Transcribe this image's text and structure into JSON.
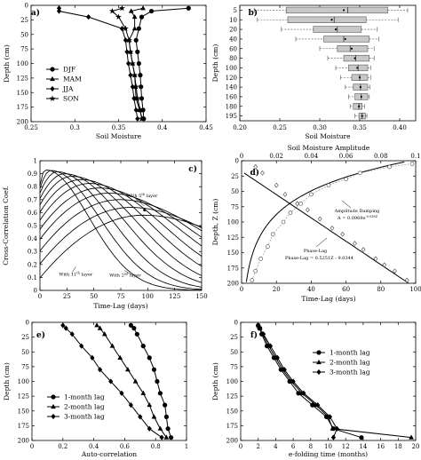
{
  "chart_data": [
    {
      "id": "a",
      "type": "line",
      "panel_label": "a)",
      "xlabel": "Soil Moisture",
      "ylabel": "Depth (cm)",
      "xlim": [
        0.2,
        0.45
      ],
      "ylim": [
        0,
        200
      ],
      "y_inverted": true,
      "xticks": [
        "0.25",
        "0.3",
        "0.35",
        "0.4",
        "0.45"
      ],
      "yticks": [
        "0",
        "25",
        "50",
        "75",
        "100",
        "125",
        "150",
        "175",
        "200"
      ],
      "legend": "bottom-left",
      "depths": [
        5,
        10,
        20,
        40,
        60,
        80,
        100,
        120,
        140,
        160,
        180,
        195
      ],
      "series": [
        {
          "name": "DJF",
          "marker": "circle",
          "values": [
            0.425,
            0.372,
            0.358,
            0.354,
            0.35,
            0.352,
            0.354,
            0.356,
            0.357,
            0.358,
            0.36,
            0.361
          ]
        },
        {
          "name": "MAM",
          "marker": "triangle",
          "values": [
            0.36,
            0.343,
            0.348,
            0.348,
            0.34,
            0.342,
            0.345,
            0.348,
            0.349,
            0.35,
            0.355,
            0.359
          ]
        },
        {
          "name": "JJA",
          "marker": "diamond",
          "values": [
            0.24,
            0.24,
            0.282,
            0.33,
            0.335,
            0.337,
            0.339,
            0.342,
            0.345,
            0.347,
            0.35,
            0.352
          ]
        },
        {
          "name": "SON",
          "marker": "star",
          "values": [
            0.33,
            0.316,
            0.325,
            0.335,
            0.34,
            0.342,
            0.345,
            0.348,
            0.35,
            0.352,
            0.356,
            0.358
          ]
        }
      ]
    },
    {
      "id": "b",
      "type": "box",
      "panel_label": "b)",
      "xlabel": "Soil Moisture",
      "ylabel": "Depth (cm)",
      "xlim": [
        0.2,
        0.42
      ],
      "xticks": [
        "0.20",
        "0.25",
        "0.30",
        "0.35",
        "0.40"
      ],
      "categories": [
        "5",
        "10",
        "20",
        "40",
        "60",
        "80",
        "100",
        "120",
        "140",
        "160",
        "180",
        "195"
      ],
      "boxes": [
        {
          "whisker_low": 0.218,
          "q1": 0.258,
          "median": 0.335,
          "q3": 0.385,
          "whisker_high": 0.41,
          "mean": 0.33
        },
        {
          "whisker_low": 0.222,
          "q1": 0.26,
          "median": 0.318,
          "q3": 0.358,
          "whisker_high": 0.398,
          "mean": 0.315
        },
        {
          "whisker_low": 0.252,
          "q1": 0.292,
          "median": 0.322,
          "q3": 0.352,
          "whisker_high": 0.372,
          "mean": 0.32
        },
        {
          "whisker_low": 0.27,
          "q1": 0.305,
          "median": 0.33,
          "q3": 0.362,
          "whisker_high": 0.374,
          "mean": 0.332
        },
        {
          "whisker_low": 0.3,
          "q1": 0.322,
          "median": 0.338,
          "q3": 0.36,
          "whisker_high": 0.368,
          "mean": 0.34
        },
        {
          "whisker_low": 0.31,
          "q1": 0.33,
          "median": 0.345,
          "q3": 0.362,
          "whisker_high": 0.368,
          "mean": 0.344
        },
        {
          "whisker_low": 0.32,
          "q1": 0.336,
          "median": 0.348,
          "q3": 0.36,
          "whisker_high": 0.364,
          "mean": 0.347
        },
        {
          "whisker_low": 0.326,
          "q1": 0.34,
          "median": 0.35,
          "q3": 0.36,
          "whisker_high": 0.364,
          "mean": 0.35
        },
        {
          "whisker_low": 0.332,
          "q1": 0.342,
          "median": 0.351,
          "q3": 0.36,
          "whisker_high": 0.363,
          "mean": 0.351
        },
        {
          "whisker_low": 0.336,
          "q1": 0.344,
          "median": 0.352,
          "q3": 0.36,
          "whisker_high": 0.362,
          "mean": 0.352
        },
        {
          "whisker_low": 0.338,
          "q1": 0.342,
          "median": 0.349,
          "q3": 0.353,
          "whisker_high": 0.356,
          "mean": 0.349
        },
        {
          "whisker_low": 0.344,
          "q1": 0.349,
          "median": 0.353,
          "q3": 0.357,
          "whisker_high": 0.359,
          "mean": 0.353
        }
      ]
    },
    {
      "id": "c",
      "type": "line",
      "panel_label": "c)",
      "xlabel": "Time-Lag (days)",
      "ylabel": "Cross-Correlation Coef.",
      "xlim": [
        0,
        150
      ],
      "ylim": [
        0,
        1
      ],
      "xticks": [
        "0",
        "25",
        "50",
        "75",
        "100",
        "125",
        "150"
      ],
      "yticks": [
        "0",
        "0.1",
        "0.2",
        "0.3",
        "0.4",
        "0.5",
        "0.6",
        "0.7",
        "0.8",
        "0.9",
        "1"
      ],
      "curve_peaks": [
        {
          "lag": 5,
          "coef": 0.93
        },
        {
          "lag": 10,
          "coef": 0.925
        },
        {
          "lag": 16,
          "coef": 0.915
        },
        {
          "lag": 23,
          "coef": 0.9
        },
        {
          "lag": 30,
          "coef": 0.88
        },
        {
          "lag": 38,
          "coef": 0.855
        },
        {
          "lag": 46,
          "coef": 0.825
        },
        {
          "lag": 55,
          "coef": 0.79
        },
        {
          "lag": 64,
          "coef": 0.75
        },
        {
          "lag": 74,
          "coef": 0.7
        },
        {
          "lag": 84,
          "coef": 0.64
        },
        {
          "lag": 96,
          "coef": 0.58
        }
      ],
      "annotations": {
        "fifth_layer": {
          "text": "With 5",
          "sup": "th",
          "rest": " layer",
          "lag": 97,
          "coef": 0.65
        },
        "second_layer": {
          "text": "With 2",
          "sup": "nd",
          "rest": " layer",
          "lag": 85,
          "coef": 0.12
        },
        "eleventh_layer": {
          "text": "With 11",
          "sup": "th",
          "rest": " layer",
          "lag": 30,
          "coef": 0.14
        }
      }
    },
    {
      "id": "d",
      "type": "scatter",
      "panel_label": "d)",
      "xlabel": "Time-Lag (days)",
      "ylabel": "Depth, Z (cm)",
      "top_xlabel": "Soil Moisture Amplitude",
      "xlim": [
        0,
        100
      ],
      "top_xlim": [
        0,
        0.1
      ],
      "ylim": [
        0,
        200
      ],
      "y_inverted": true,
      "xticks": [
        "0",
        "20",
        "40",
        "60",
        "80",
        "100"
      ],
      "top_xticks": [
        "0",
        "0.02",
        "0.04",
        "0.06",
        "0.08",
        "0.1"
      ],
      "yticks": [
        "0",
        "25",
        "50",
        "75",
        "100",
        "125",
        "150",
        "175",
        "200"
      ],
      "phase_lag_points": [
        [
          95,
          195
        ],
        [
          88,
          180
        ],
        [
          82,
          170
        ],
        [
          77,
          160
        ],
        [
          70,
          145
        ],
        [
          65,
          135
        ],
        [
          58,
          120
        ],
        [
          52,
          110
        ],
        [
          45,
          95
        ],
        [
          38,
          80
        ],
        [
          32,
          70
        ],
        [
          25,
          55
        ],
        [
          20,
          40
        ],
        [
          12,
          20
        ],
        [
          8,
          10
        ]
      ],
      "amplitude_points": [
        [
          0.098,
          5
        ],
        [
          0.085,
          10
        ],
        [
          0.068,
          20
        ],
        [
          0.06,
          30
        ],
        [
          0.05,
          40
        ],
        [
          0.04,
          55
        ],
        [
          0.034,
          70
        ],
        [
          0.028,
          85
        ],
        [
          0.024,
          100
        ],
        [
          0.018,
          120
        ],
        [
          0.015,
          140
        ],
        [
          0.011,
          160
        ],
        [
          0.008,
          180
        ],
        [
          0.006,
          195
        ]
      ],
      "annotations": {
        "damping_title": "Amplitude Damping",
        "damping_eq_base": "A = 0.0969e",
        "damping_eq_exp": "-0.018Z",
        "phase_title": "Phase-Lag",
        "phase_eq": "Phase-Lag = 0.5251Z - 9.0344"
      }
    },
    {
      "id": "e",
      "type": "line",
      "panel_label": "e)",
      "xlabel": "Auto-correlation",
      "ylabel": "Depth (cm)",
      "xlim": [
        0,
        1
      ],
      "ylim": [
        0,
        200
      ],
      "y_inverted": true,
      "xticks": [
        "0",
        "0.2",
        "0.4",
        "0.6",
        "0.8",
        "1"
      ],
      "yticks": [
        "0",
        "25",
        "50",
        "75",
        "100",
        "125",
        "150",
        "175",
        "200"
      ],
      "legend": "bottom-left",
      "depths": [
        5,
        10,
        20,
        40,
        60,
        80,
        100,
        120,
        140,
        160,
        180,
        195
      ],
      "series": [
        {
          "name": "1-month lag",
          "marker": "circle",
          "values": [
            0.64,
            0.66,
            0.68,
            0.72,
            0.76,
            0.79,
            0.81,
            0.83,
            0.86,
            0.87,
            0.88,
            0.9
          ]
        },
        {
          "name": "2-month lag",
          "marker": "triangle",
          "values": [
            0.42,
            0.44,
            0.47,
            0.52,
            0.57,
            0.62,
            0.67,
            0.72,
            0.76,
            0.79,
            0.83,
            0.87
          ]
        },
        {
          "name": "3-month lag",
          "marker": "diamond",
          "values": [
            0.2,
            0.22,
            0.26,
            0.32,
            0.39,
            0.44,
            0.51,
            0.58,
            0.64,
            0.7,
            0.76,
            0.84
          ]
        }
      ]
    },
    {
      "id": "f",
      "type": "line",
      "panel_label": "f)",
      "xlabel": "e-folding time (months)",
      "ylabel": "Depth (cm)",
      "xlim": [
        0,
        20
      ],
      "ylim": [
        0,
        200
      ],
      "y_inverted": true,
      "xticks": [
        "0",
        "2",
        "4",
        "6",
        "8",
        "10",
        "12",
        "14",
        "16",
        "18",
        "20"
      ],
      "yticks": [
        "0",
        "25",
        "50",
        "75",
        "100",
        "125",
        "150",
        "175",
        "200"
      ],
      "legend": "top-right",
      "depths": [
        5,
        10,
        20,
        40,
        60,
        80,
        100,
        120,
        140,
        160,
        180,
        195
      ],
      "series": [
        {
          "name": "1-month lag",
          "marker": "circle",
          "values": [
            2.0,
            2.2,
            2.4,
            3.0,
            3.8,
            4.6,
            5.6,
            6.6,
            8.2,
            9.8,
            10.6,
            13.8
          ]
        },
        {
          "name": "2-month lag",
          "marker": "triangle",
          "values": [
            2.0,
            2.2,
            2.5,
            3.2,
            4.0,
            4.8,
            5.8,
            7.0,
            8.6,
            10.0,
            10.5,
            19.5
          ]
        },
        {
          "name": "3-month lag",
          "marker": "diamond",
          "values": [
            2.0,
            2.1,
            2.6,
            3.4,
            4.2,
            5.0,
            6.0,
            7.2,
            8.8,
            10.2,
            11.0,
            10.6
          ]
        }
      ]
    }
  ]
}
